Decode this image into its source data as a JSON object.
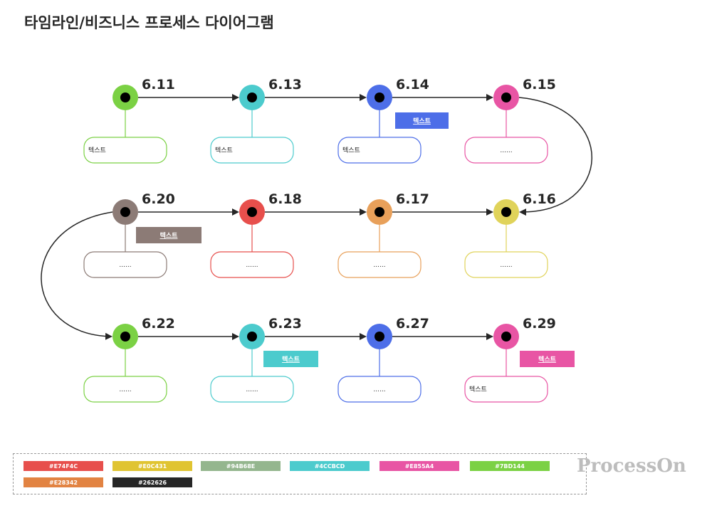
{
  "title": "타임라인/비즈니스 프로세스 다이어그램",
  "logo": "ProcessOn",
  "nodes": [
    {
      "date": "6.11",
      "color": "#7BD144",
      "box": "텍스트"
    },
    {
      "date": "6.13",
      "color": "#4CCBCD",
      "box": "텍스트"
    },
    {
      "date": "6.14",
      "color": "#4D6EE8",
      "box": "텍스트",
      "tag": "텍스트"
    },
    {
      "date": "6.15",
      "color": "#E855A4",
      "box": "......"
    },
    {
      "date": "6.20",
      "color": "#8C7B76",
      "box": "......",
      "tag": "텍스트"
    },
    {
      "date": "6.18",
      "color": "#E74F4C",
      "box": "......"
    },
    {
      "date": "6.17",
      "color": "#E8A05A",
      "box": "......"
    },
    {
      "date": "6.16",
      "color": "#E0D35A",
      "box": "......"
    },
    {
      "date": "6.22",
      "color": "#7BD144",
      "box": "......"
    },
    {
      "date": "6.23",
      "color": "#4CCBCD",
      "box": "......",
      "tag": "텍스트"
    },
    {
      "date": "6.27",
      "color": "#4D6EE8",
      "box": "......"
    },
    {
      "date": "6.29",
      "color": "#E855A4",
      "box": "텍스트",
      "tag": "텍스트"
    }
  ],
  "palette": [
    {
      "label": "#E74F4C",
      "color": "#E74F4C"
    },
    {
      "label": "#E0C431",
      "color": "#E0C431"
    },
    {
      "label": "#94B68E",
      "color": "#94B68E"
    },
    {
      "label": "#4CCBCD",
      "color": "#4CCBCD"
    },
    {
      "label": "#E855A4",
      "color": "#E855A4"
    },
    {
      "label": "#7BD144",
      "color": "#7BD144"
    },
    {
      "label": "#E28342",
      "color": "#E28342"
    },
    {
      "label": "#262626",
      "color": "#262626"
    }
  ]
}
